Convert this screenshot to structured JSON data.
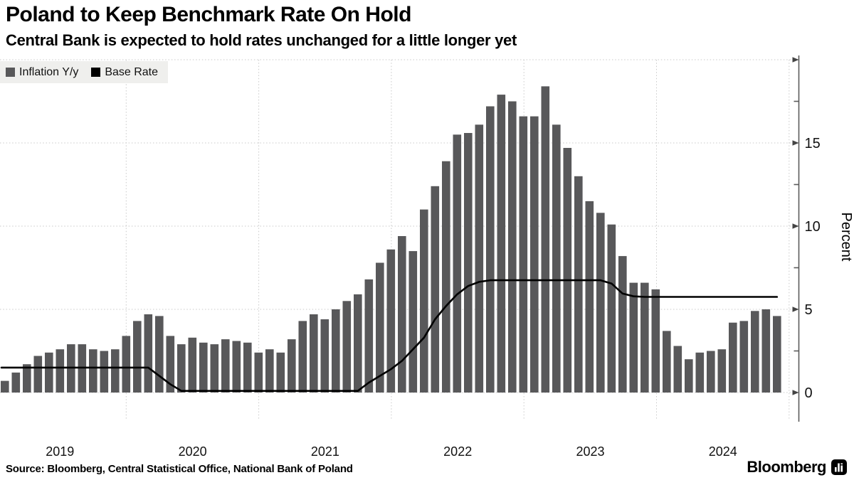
{
  "header": {
    "title": "Poland to Keep Benchmark Rate On Hold",
    "subtitle": "Central Bank is expected to hold rates unchanged for a little longer yet"
  },
  "legend": {
    "items": [
      {
        "label": "Inflation Y/y",
        "color": "#58585a",
        "marker": "square"
      },
      {
        "label": "Base Rate",
        "color": "#000000",
        "marker": "square"
      }
    ]
  },
  "footer": {
    "source": "Source: Bloomberg, Central Statistical Office, National Bank of Poland",
    "brand": "Bloomberg",
    "brand_icon": "bloomberg-bars-icon"
  },
  "colors": {
    "bar": "#58585a",
    "line": "#000000",
    "grid": "#c9c9c9",
    "axis": "#5a5a5a",
    "legend_bg": "#efefed"
  },
  "chart_data": {
    "type": "bar",
    "title": "Poland to Keep Benchmark Rate On Hold",
    "subtitle": "Central Bank is expected to hold rates unchanged for a little longer yet",
    "xlabel": "",
    "ylabel": "Percent",
    "ylim": [
      0,
      20
    ],
    "grid": true,
    "legend_position": "top-left",
    "x_start_month": "2019-01",
    "x_end_month": "2024-11",
    "xticks": [
      "2019",
      "2020",
      "2021",
      "2022",
      "2023",
      "2024"
    ],
    "yticks_major": [
      0,
      5,
      10,
      15
    ],
    "yticks_minor": [
      2.5,
      7.5,
      12.5,
      17.5
    ],
    "series": [
      {
        "name": "Inflation Y/y",
        "type": "bar",
        "color": "#58585a",
        "values": [
          0.7,
          1.2,
          1.7,
          2.2,
          2.4,
          2.6,
          2.9,
          2.9,
          2.6,
          2.5,
          2.6,
          3.4,
          4.3,
          4.7,
          4.6,
          3.4,
          2.9,
          3.3,
          3.0,
          2.9,
          3.2,
          3.1,
          3.0,
          2.4,
          2.6,
          2.4,
          3.2,
          4.3,
          4.7,
          4.4,
          5.0,
          5.5,
          5.9,
          6.8,
          7.8,
          8.6,
          9.4,
          8.5,
          11.0,
          12.4,
          13.9,
          15.5,
          15.6,
          16.1,
          17.2,
          17.9,
          17.5,
          16.6,
          16.6,
          18.4,
          16.1,
          14.7,
          13.0,
          11.5,
          10.8,
          10.1,
          8.2,
          6.6,
          6.6,
          6.2,
          3.7,
          2.8,
          2.0,
          2.4,
          2.5,
          2.6,
          4.2,
          4.3,
          4.9,
          5.0,
          4.6
        ]
      },
      {
        "name": "Base Rate",
        "type": "line",
        "color": "#000000",
        "values": [
          1.5,
          1.5,
          1.5,
          1.5,
          1.5,
          1.5,
          1.5,
          1.5,
          1.5,
          1.5,
          1.5,
          1.5,
          1.5,
          1.5,
          1.0,
          0.5,
          0.1,
          0.1,
          0.1,
          0.1,
          0.1,
          0.1,
          0.1,
          0.1,
          0.1,
          0.1,
          0.1,
          0.1,
          0.1,
          0.1,
          0.1,
          0.1,
          0.1,
          0.6,
          1.0,
          1.4,
          1.9,
          2.6,
          3.3,
          4.4,
          5.2,
          5.9,
          6.4,
          6.65,
          6.75,
          6.75,
          6.75,
          6.75,
          6.75,
          6.75,
          6.75,
          6.75,
          6.75,
          6.75,
          6.75,
          6.55,
          5.95,
          5.78,
          5.75,
          5.75,
          5.75,
          5.75,
          5.75,
          5.75,
          5.75,
          5.75,
          5.75,
          5.75,
          5.75,
          5.75,
          5.75
        ]
      }
    ]
  }
}
